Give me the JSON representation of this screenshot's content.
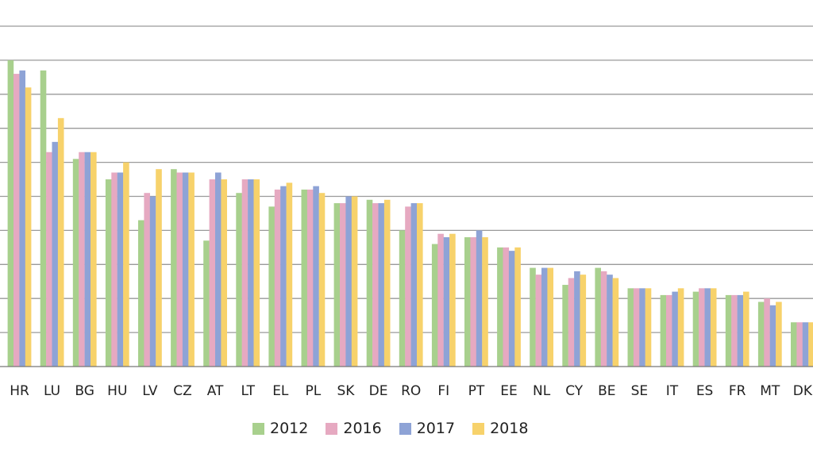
{
  "chart_data": {
    "type": "bar",
    "title": "",
    "xlabel": "",
    "ylabel": "",
    "grid": true,
    "legend_position": "bottom",
    "ylim": [
      0,
      10
    ],
    "categories": [
      "HR",
      "LU",
      "BG",
      "HU",
      "LV",
      "CZ",
      "AT",
      "LT",
      "EL",
      "PL",
      "SK",
      "DE",
      "RO",
      "FI",
      "PT",
      "EE",
      "NL",
      "CY",
      "BE",
      "SE",
      "IT",
      "ES",
      "FR",
      "MT",
      "DK"
    ],
    "series": [
      {
        "name": "2012",
        "color": "#a8d08d",
        "values": [
          9.0,
          8.7,
          6.1,
          5.5,
          4.3,
          5.8,
          3.7,
          5.1,
          4.7,
          5.2,
          4.8,
          4.9,
          4.0,
          3.6,
          3.8,
          3.5,
          2.9,
          2.4,
          2.9,
          2.3,
          2.1,
          2.2,
          2.1,
          1.9,
          1.3
        ]
      },
      {
        "name": "2016",
        "color": "#e6a9c1",
        "values": [
          8.6,
          6.3,
          6.3,
          5.7,
          5.1,
          5.7,
          5.5,
          5.5,
          5.2,
          5.2,
          4.8,
          4.8,
          4.7,
          3.9,
          3.8,
          3.5,
          2.7,
          2.6,
          2.8,
          2.3,
          2.1,
          2.3,
          2.1,
          2.0,
          1.3
        ]
      },
      {
        "name": "2017",
        "color": "#8ea3d6",
        "values": [
          8.7,
          6.6,
          6.3,
          5.7,
          5.0,
          5.7,
          5.7,
          5.5,
          5.3,
          5.3,
          5.0,
          4.8,
          4.8,
          3.8,
          4.0,
          3.4,
          2.9,
          2.8,
          2.7,
          2.3,
          2.2,
          2.3,
          2.1,
          1.8,
          1.3
        ]
      },
      {
        "name": "2018",
        "color": "#f7d26b",
        "values": [
          8.2,
          7.3,
          6.3,
          6.0,
          5.8,
          5.7,
          5.5,
          5.5,
          5.4,
          5.1,
          5.0,
          4.9,
          4.8,
          3.9,
          3.8,
          3.5,
          2.9,
          2.7,
          2.6,
          2.3,
          2.3,
          2.3,
          2.2,
          1.9,
          1.3
        ]
      }
    ]
  }
}
